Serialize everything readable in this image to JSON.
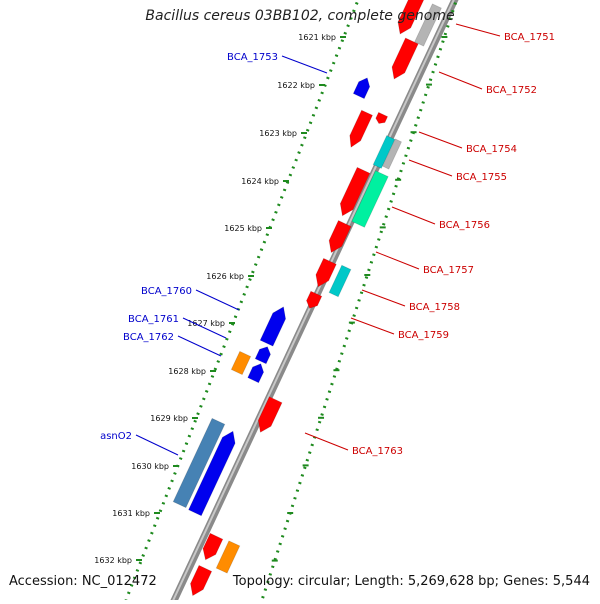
{
  "title": "Bacillus cereus 03BB102, complete genome",
  "footer": {
    "accession": "Accession: NC_012472",
    "summary": "Topology: circular; Length: 5,269,628 bp; Genes: 5,544"
  },
  "ticks": [
    "1621 kbp",
    "1622 kbp",
    "1623 kbp",
    "1624 kbp",
    "1625 kbp",
    "1626 kbp",
    "1627 kbp",
    "1628 kbp",
    "1629 kbp",
    "1630 kbp",
    "1631 kbp",
    "1632 kbp"
  ],
  "labels_forward_strand": [
    "BCA_1753",
    "BCA_1760",
    "BCA_1761",
    "BCA_1762",
    "asnO2"
  ],
  "labels_reverse_strand": [
    "BCA_1751",
    "BCA_1752",
    "BCA_1754",
    "BCA_1755",
    "BCA_1756",
    "BCA_1757",
    "BCA_1758",
    "BCA_1759",
    "BCA_1763"
  ],
  "colors": {
    "backbone": "#8a8a8a",
    "tick_dots": "#1e8a1e",
    "reverse_gene": "#ff0000",
    "forward_gene": "#0000ee",
    "rRNA_orange": "#ff8c00",
    "teal": "#00c8c8",
    "mint": "#00f0a0",
    "steel": "#4682b4",
    "grey": "#b4b4b4",
    "forward_label": "#0000cc",
    "reverse_label": "#cc0000"
  }
}
